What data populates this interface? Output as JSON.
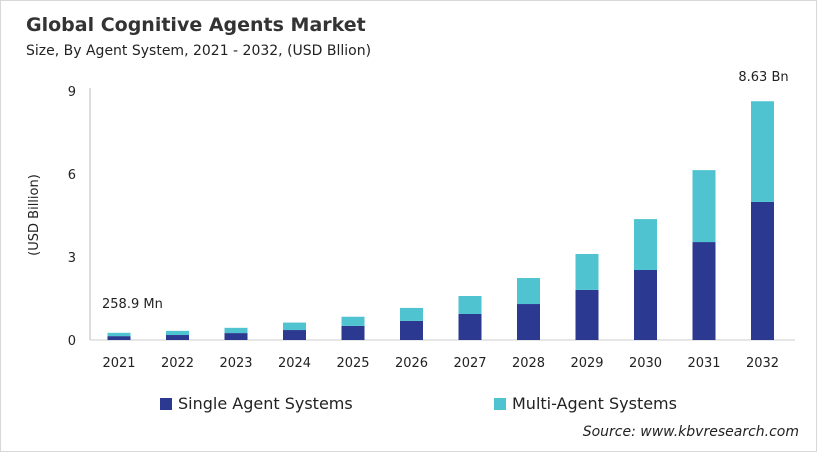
{
  "chart_data": {
    "type": "bar",
    "stacked": true,
    "title": "Global Cognitive Agents Market",
    "subtitle": "Size, By Agent System, 2021 - 2032, (USD Bllion)",
    "xlabel": "",
    "ylabel": "(USD Billion)",
    "ylim": [
      0,
      9
    ],
    "yticks": [
      0,
      3,
      6,
      9
    ],
    "grid": false,
    "legend": "bottom",
    "categories": [
      "2021",
      "2022",
      "2023",
      "2024",
      "2025",
      "2026",
      "2027",
      "2028",
      "2029",
      "2030",
      "2031",
      "2032"
    ],
    "series": [
      {
        "name": "Single Agent Systems",
        "color": "#2b3990",
        "values": [
          0.14,
          0.18,
          0.25,
          0.36,
          0.51,
          0.69,
          0.94,
          1.3,
          1.81,
          2.53,
          3.54,
          4.99
        ]
      },
      {
        "name": "Multi-Agent Systems",
        "color": "#4fc3cf",
        "values": [
          0.12,
          0.15,
          0.19,
          0.27,
          0.33,
          0.47,
          0.65,
          0.94,
          1.3,
          1.84,
          2.6,
          3.64
        ]
      }
    ],
    "annotations": [
      {
        "category": "2021",
        "text": "258.9  Mn"
      },
      {
        "category": "2032",
        "text": "8.63  Bn"
      }
    ],
    "source": "Source: www.kbvresearch.com"
  }
}
